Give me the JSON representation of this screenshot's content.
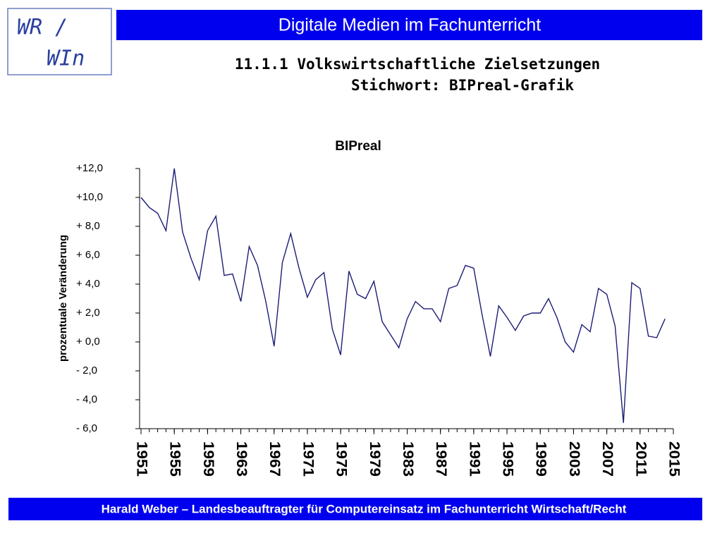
{
  "header": {
    "logo_line1": "WR /",
    "logo_line2": "WIn",
    "banner": "Digitale Medien im Fachunterricht",
    "title": "11.1.1 Volkswirtschaftliche Zielsetzungen",
    "subtitle": "Stichwort: BIPreal-Grafik",
    "footer": "Harald Weber – Landesbeauftragter für Computereinsatz im Fachunterricht Wirtschaft/Recht"
  },
  "chart_data": {
    "type": "line",
    "title": "BIPreal",
    "y_label": "prozentuale Veränderung",
    "x": [
      1951,
      1952,
      1953,
      1954,
      1955,
      1956,
      1957,
      1958,
      1959,
      1960,
      1961,
      1962,
      1963,
      1964,
      1965,
      1966,
      1967,
      1968,
      1969,
      1970,
      1971,
      1972,
      1973,
      1974,
      1975,
      1976,
      1977,
      1978,
      1979,
      1980,
      1981,
      1982,
      1983,
      1984,
      1985,
      1986,
      1987,
      1988,
      1989,
      1990,
      1991,
      1992,
      1993,
      1994,
      1995,
      1996,
      1997,
      1998,
      1999,
      2000,
      2001,
      2002,
      2003,
      2004,
      2005,
      2006,
      2007,
      2008,
      2009,
      2010,
      2011,
      2012,
      2013,
      2014
    ],
    "values": [
      10.0,
      9.3,
      8.9,
      7.7,
      12.0,
      7.6,
      5.8,
      4.3,
      7.7,
      8.7,
      4.6,
      4.7,
      2.8,
      6.6,
      5.3,
      2.8,
      -0.3,
      5.5,
      7.5,
      5.1,
      3.1,
      4.3,
      4.8,
      0.9,
      -0.9,
      4.9,
      3.3,
      3.0,
      4.2,
      1.4,
      0.5,
      -0.4,
      1.6,
      2.8,
      2.3,
      2.3,
      1.4,
      3.7,
      3.9,
      5.3,
      5.1,
      1.9,
      -1.0,
      2.5,
      1.7,
      0.8,
      1.8,
      2.0,
      2.0,
      3.0,
      1.7,
      0.0,
      -0.7,
      1.2,
      0.7,
      3.7,
      3.3,
      1.1,
      -5.6,
      4.1,
      3.7,
      0.4,
      0.3,
      1.6
    ],
    "color": "#1c1c78",
    "xlim": [
      1951,
      2015
    ],
    "xticks": [
      1951,
      1955,
      1959,
      1963,
      1967,
      1971,
      1975,
      1979,
      1983,
      1987,
      1991,
      1995,
      1999,
      2003,
      2007,
      2011,
      2015
    ],
    "ylim": [
      -6,
      12
    ],
    "yticks": [
      {
        "value": 12,
        "label": "+12,0"
      },
      {
        "value": 10,
        "label": "+10,0"
      },
      {
        "value": 8,
        "label": "+ 8,0"
      },
      {
        "value": 6,
        "label": "+ 6,0"
      },
      {
        "value": 4,
        "label": "+ 4,0"
      },
      {
        "value": 2,
        "label": "+ 2,0"
      },
      {
        "value": 0,
        "label": "+ 0,0"
      },
      {
        "value": -2,
        "label": "- 2,0"
      },
      {
        "value": -4,
        "label": "- 4,0"
      },
      {
        "value": -6,
        "label": "- 6,0"
      }
    ]
  }
}
